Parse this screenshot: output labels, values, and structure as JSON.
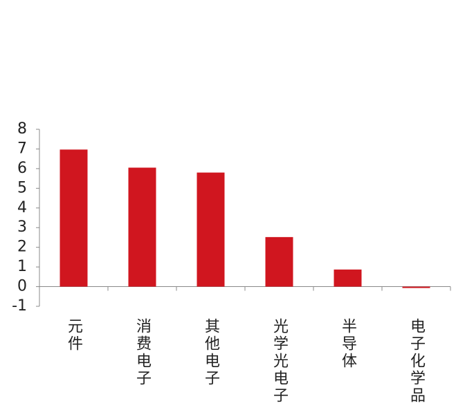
{
  "chart_data": {
    "type": "bar",
    "categories": [
      "元件",
      "消费电子",
      "其他电子",
      "光学光电子",
      "半导体",
      "电子化学品"
    ],
    "values": [
      6.97,
      6.05,
      5.8,
      2.52,
      0.87,
      -0.07
    ],
    "color": "#d0161f",
    "ylim": [
      -1,
      8
    ],
    "yticks": [
      -1,
      0,
      1,
      2,
      3,
      4,
      5,
      6,
      7,
      8
    ],
    "grid": false
  }
}
